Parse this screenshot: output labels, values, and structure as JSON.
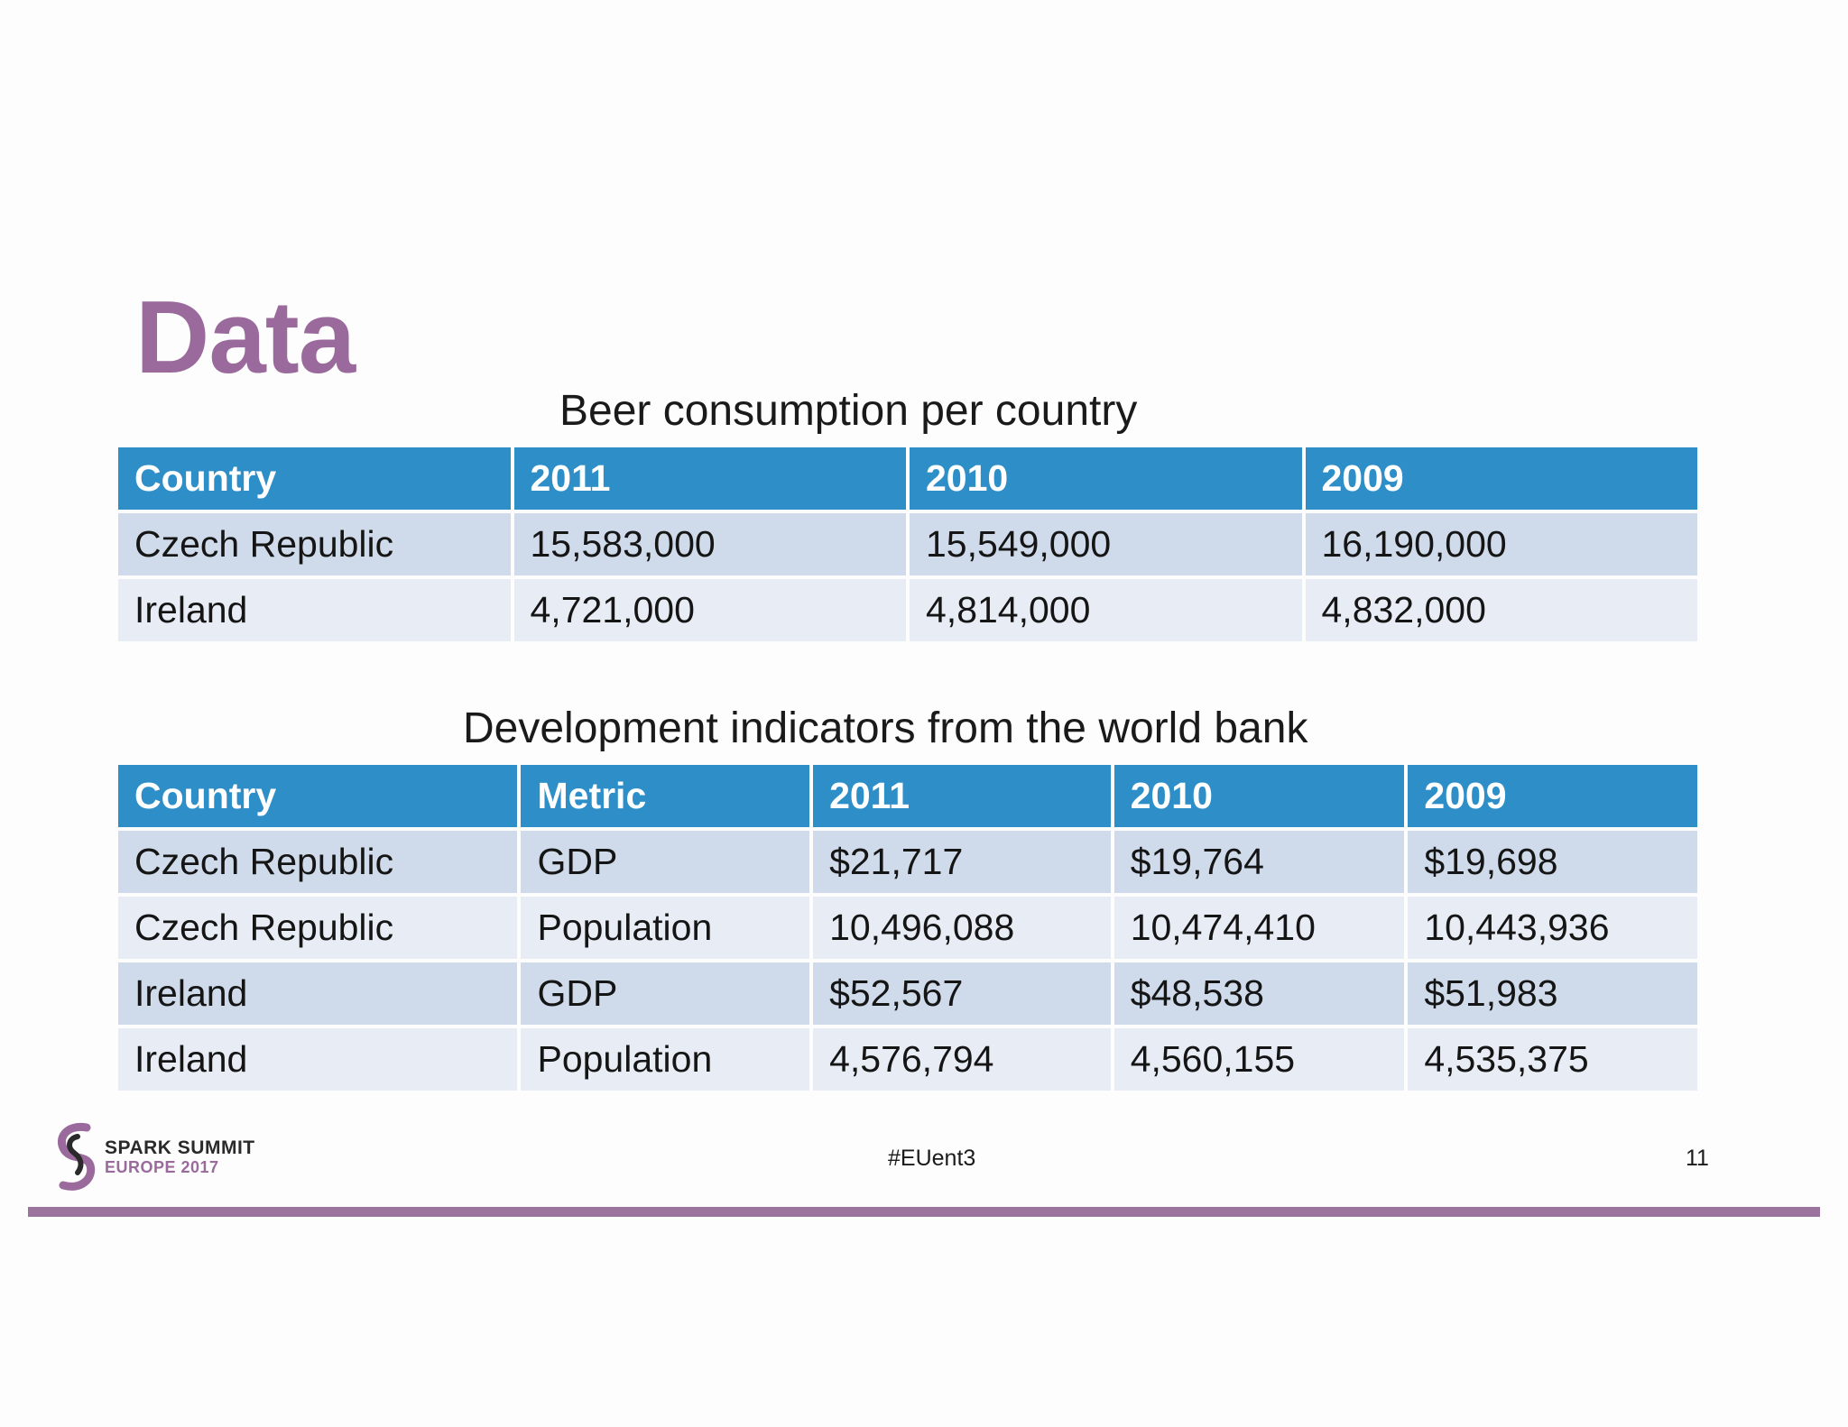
{
  "slide": {
    "title": "Data",
    "accent_color": "#9b6a9d",
    "header_color": "#2e8fc8"
  },
  "beer_table": {
    "caption": "Beer consumption per country",
    "headers": [
      "Country",
      "2011",
      "2010",
      "2009"
    ],
    "rows": [
      [
        "Czech Republic",
        "15,583,000",
        "15,549,000",
        "16,190,000"
      ],
      [
        "Ireland",
        "4,721,000",
        "4,814,000",
        "4,832,000"
      ]
    ]
  },
  "dev_table": {
    "caption": "Development indicators from the world bank",
    "headers": [
      "Country",
      "Metric",
      "2011",
      "2010",
      "2009"
    ],
    "rows": [
      [
        "Czech Republic",
        "GDP",
        "$21,717",
        "$19,764",
        "$19,698"
      ],
      [
        "Czech Republic",
        "Population",
        "10,496,088",
        "10,474,410",
        "10,443,936"
      ],
      [
        "Ireland",
        "GDP",
        "$52,567",
        "$48,538",
        "$51,983"
      ],
      [
        "Ireland",
        "Population",
        "4,576,794",
        "4,560,155",
        "4,535,375"
      ]
    ]
  },
  "footer": {
    "logo_icon": "spark-summit-logo-icon",
    "logo_line1": "SPARK SUMMIT",
    "logo_line2": "EUROPE 2017",
    "hashtag": "#EUent3",
    "page_number": "11"
  }
}
